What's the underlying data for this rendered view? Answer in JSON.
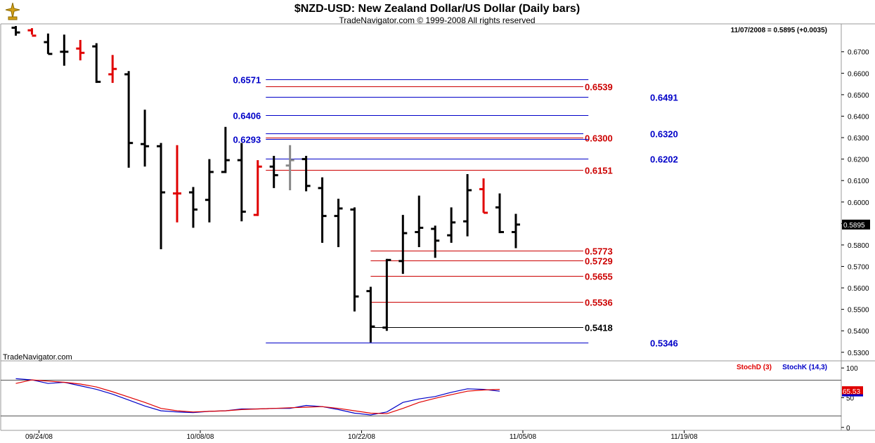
{
  "header": {
    "title": "$NZD-USD:  New Zealand Dollar/US Dollar  (Daily bars)",
    "subtitle": "TradeNavigator.com © 1999-2008 All rights reserved",
    "last_quote": "11/07/2008 = 0.5895 (+0.0035)",
    "watermark": "TradeNavigator.com"
  },
  "colors": {
    "up": "#000000",
    "down": "#e00000",
    "neutral": "#888888",
    "fib_blue": "#0000c8",
    "fib_red": "#cc0000",
    "stoch_d": "#e00000",
    "stoch_k": "#0000c8"
  },
  "chart_data": [
    {
      "type": "ohlc",
      "title": "$NZD-USD:  New Zealand Dollar/US Dollar  (Daily bars)",
      "ylim": [
        0.526,
        0.683
      ],
      "y_ticks": [
        "0.6700",
        "0.6600",
        "0.6500",
        "0.6400",
        "0.6300",
        "0.6200",
        "0.6100",
        "0.6000",
        "0.5900",
        "0.5800",
        "0.5700",
        "0.5600",
        "0.5500",
        "0.5400",
        "0.5300"
      ],
      "last_price_label": "0.5895",
      "bars": [
        {
          "o": 0.6812,
          "h": 0.682,
          "l": 0.6775,
          "c": 0.679,
          "color": "up"
        },
        {
          "o": 0.68,
          "h": 0.681,
          "l": 0.678,
          "c": 0.6775,
          "color": "down"
        },
        {
          "o": 0.6745,
          "h": 0.6785,
          "l": 0.669,
          "c": 0.669,
          "color": "up"
        },
        {
          "o": 0.67,
          "h": 0.678,
          "l": 0.6635,
          "c": 0.67,
          "color": "up"
        },
        {
          "o": 0.6715,
          "h": 0.6755,
          "l": 0.666,
          "c": 0.6695,
          "color": "down"
        },
        {
          "o": 0.6725,
          "h": 0.674,
          "l": 0.6555,
          "c": 0.656,
          "color": "up"
        },
        {
          "o": 0.6595,
          "h": 0.6685,
          "l": 0.6555,
          "c": 0.662,
          "color": "down"
        },
        {
          "o": 0.6595,
          "h": 0.661,
          "l": 0.616,
          "c": 0.6275,
          "color": "up"
        },
        {
          "o": 0.627,
          "h": 0.643,
          "l": 0.6165,
          "c": 0.626,
          "color": "up"
        },
        {
          "o": 0.626,
          "h": 0.6275,
          "l": 0.578,
          "c": 0.6045,
          "color": "up"
        },
        {
          "o": 0.604,
          "h": 0.6265,
          "l": 0.5905,
          "c": 0.604,
          "color": "down"
        },
        {
          "o": 0.6045,
          "h": 0.607,
          "l": 0.588,
          "c": 0.5965,
          "color": "up"
        },
        {
          "o": 0.601,
          "h": 0.62,
          "l": 0.5905,
          "c": 0.614,
          "color": "up"
        },
        {
          "o": 0.614,
          "h": 0.635,
          "l": 0.6135,
          "c": 0.6195,
          "color": "up"
        },
        {
          "o": 0.6195,
          "h": 0.6275,
          "l": 0.591,
          "c": 0.5955,
          "color": "up"
        },
        {
          "o": 0.594,
          "h": 0.6195,
          "l": 0.5935,
          "c": 0.6165,
          "color": "down"
        },
        {
          "o": 0.6165,
          "h": 0.6215,
          "l": 0.6065,
          "c": 0.6125,
          "color": "up"
        },
        {
          "o": 0.617,
          "h": 0.6265,
          "l": 0.6055,
          "c": 0.6195,
          "color": "neutral"
        },
        {
          "o": 0.62,
          "h": 0.6215,
          "l": 0.605,
          "c": 0.6075,
          "color": "up"
        },
        {
          "o": 0.6065,
          "h": 0.6115,
          "l": 0.581,
          "c": 0.5935,
          "color": "up"
        },
        {
          "o": 0.5935,
          "h": 0.6015,
          "l": 0.579,
          "c": 0.597,
          "color": "up"
        },
        {
          "o": 0.5965,
          "h": 0.5975,
          "l": 0.549,
          "c": 0.556,
          "color": "up"
        },
        {
          "o": 0.5585,
          "h": 0.5605,
          "l": 0.5346,
          "c": 0.542,
          "color": "up"
        },
        {
          "o": 0.5415,
          "h": 0.5735,
          "l": 0.54,
          "c": 0.573,
          "color": "up"
        },
        {
          "o": 0.5725,
          "h": 0.594,
          "l": 0.5665,
          "c": 0.5855,
          "color": "up"
        },
        {
          "o": 0.586,
          "h": 0.603,
          "l": 0.579,
          "c": 0.588,
          "color": "up"
        },
        {
          "o": 0.5875,
          "h": 0.589,
          "l": 0.574,
          "c": 0.582,
          "color": "up"
        },
        {
          "o": 0.5845,
          "h": 0.5975,
          "l": 0.581,
          "c": 0.5905,
          "color": "up"
        },
        {
          "o": 0.591,
          "h": 0.613,
          "l": 0.584,
          "c": 0.6055,
          "color": "up"
        },
        {
          "o": 0.606,
          "h": 0.611,
          "l": 0.595,
          "c": 0.595,
          "color": "down"
        },
        {
          "o": 0.5975,
          "h": 0.604,
          "l": 0.5855,
          "c": 0.586,
          "color": "up"
        },
        {
          "o": 0.586,
          "h": 0.5945,
          "l": 0.5785,
          "c": 0.5895,
          "color": "up"
        }
      ],
      "fib_levels": [
        {
          "value": 0.6571,
          "label": "0.6571",
          "color": "fib_blue",
          "label_side": "left",
          "x_start_bar": 15.5,
          "x_end_bar": 35.5
        },
        {
          "value": 0.6539,
          "label": "0.6539",
          "color": "fib_red",
          "label_side": "middle",
          "x_start_bar": 15.5,
          "x_end_bar": 35.5
        },
        {
          "value": 0.6491,
          "label": "0.6491",
          "color": "fib_blue",
          "label_side": "right",
          "x_start_bar": 15.5,
          "x_end_bar": 35.5
        },
        {
          "value": 0.6406,
          "label": "0.6406",
          "color": "fib_blue",
          "label_side": "left",
          "x_start_bar": 15.5,
          "x_end_bar": 35.5
        },
        {
          "value": 0.632,
          "label": "0.6320",
          "color": "fib_blue",
          "label_side": "right",
          "x_start_bar": 15.5,
          "x_end_bar": 35.5
        },
        {
          "value": 0.63,
          "label": "0.6300",
          "color": "fib_red",
          "label_side": "middle",
          "x_start_bar": 15.5,
          "x_end_bar": 35.5
        },
        {
          "value": 0.6293,
          "label": "0.6293",
          "color": "fib_blue",
          "label_side": "left",
          "x_start_bar": 15.5,
          "x_end_bar": 35.5
        },
        {
          "value": 0.6202,
          "label": "0.6202",
          "color": "fib_blue",
          "label_side": "right",
          "x_start_bar": 15.5,
          "x_end_bar": 35.5
        },
        {
          "value": 0.6151,
          "label": "0.6151",
          "color": "fib_red",
          "label_side": "middle",
          "x_start_bar": 15.5,
          "x_end_bar": 35.5
        },
        {
          "value": 0.5773,
          "label": "0.5773",
          "color": "fib_red",
          "label_side": "middle",
          "x_start_bar": 22,
          "x_end_bar": 35.5
        },
        {
          "value": 0.5729,
          "label": "0.5729",
          "color": "fib_red",
          "label_side": "middle",
          "x_start_bar": 22,
          "x_end_bar": 35.5
        },
        {
          "value": 0.5655,
          "label": "0.5655",
          "color": "fib_red",
          "label_side": "middle",
          "x_start_bar": 22,
          "x_end_bar": 35.5
        },
        {
          "value": 0.5536,
          "label": "0.5536",
          "color": "fib_red",
          "label_side": "middle",
          "x_start_bar": 22,
          "x_end_bar": 35.5
        },
        {
          "value": 0.5418,
          "label": "0.5418",
          "color": "up",
          "label_side": "middle",
          "x_start_bar": 22,
          "x_end_bar": 35.5
        },
        {
          "value": 0.5346,
          "label": "0.5346",
          "color": "fib_blue",
          "label_side": "right",
          "x_start_bar": 15.5,
          "x_end_bar": 35.5
        }
      ]
    },
    {
      "type": "line",
      "title": "",
      "legend": [
        "StochD (3)",
        "StochK (14,3)"
      ],
      "ylim": [
        -5,
        112
      ],
      "y_ticks": [
        "100",
        "50",
        "0"
      ],
      "ref_lines": [
        80,
        20
      ],
      "last_value_label": "65.53",
      "series": [
        {
          "name": "StochK (14,3)",
          "color": "stoch_k",
          "values": [
            82,
            80,
            74,
            76,
            70,
            64,
            56,
            46,
            36,
            28,
            26,
            25,
            27,
            28,
            31,
            31,
            32,
            32,
            37,
            35,
            30,
            24,
            21,
            26,
            42,
            48,
            52,
            59,
            65,
            64,
            61
          ]
        },
        {
          "name": "StochD (3)",
          "color": "stoch_d",
          "values": [
            74,
            80,
            78,
            76,
            73,
            68,
            60,
            51,
            42,
            32,
            28,
            26,
            27,
            28,
            30,
            31,
            32,
            33,
            34,
            35,
            32,
            28,
            24,
            23,
            32,
            42,
            49,
            55,
            61,
            63,
            64
          ]
        }
      ]
    }
  ],
  "x_axis": {
    "tick_labels": [
      "09/24/08",
      "10/08/08",
      "10/22/08",
      "11/05/08",
      "11/19/08"
    ]
  }
}
